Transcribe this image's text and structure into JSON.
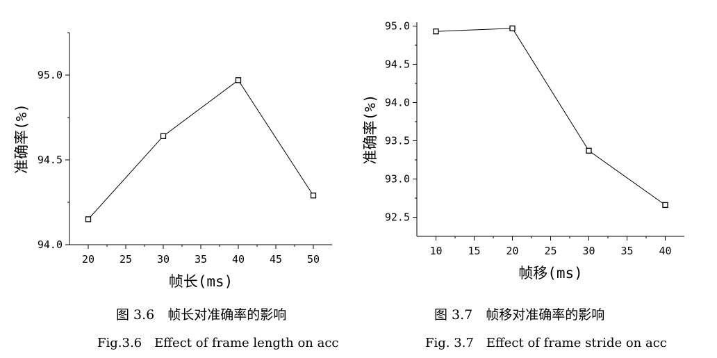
{
  "chart_data": [
    {
      "type": "line",
      "xlabel": "帧长(ms)",
      "ylabel": "准确率(%)",
      "x": [
        20,
        30,
        40,
        50
      ],
      "series": [
        {
          "values": [
            94.15,
            94.64,
            94.97,
            94.29
          ]
        }
      ],
      "xlim": [
        17.5,
        52.5
      ],
      "ylim": [
        94.0,
        95.25
      ],
      "xticks": [
        "20",
        "25",
        "30",
        "35",
        "40",
        "45",
        "50"
      ],
      "yticks": [
        "94.0",
        "94.5",
        "95.0"
      ],
      "marker": "square",
      "grid": false,
      "caption_cn": "图 3.6　帧长对准确率的影响",
      "caption_en": "Fig.3.6　Effect of frame length on acc"
    },
    {
      "type": "line",
      "xlabel": "帧移(ms)",
      "ylabel": "准确率(%)",
      "x": [
        10,
        20,
        30,
        40
      ],
      "series": [
        {
          "values": [
            94.93,
            94.97,
            93.37,
            92.66
          ]
        }
      ],
      "xlim": [
        7.5,
        42.5
      ],
      "ylim": [
        92.25,
        95.05
      ],
      "xticks": [
        "10",
        "15",
        "20",
        "25",
        "30",
        "35",
        "40"
      ],
      "yticks": [
        "92.5",
        "93.0",
        "93.5",
        "94.0",
        "94.5",
        "95.0"
      ],
      "marker": "square",
      "grid": false,
      "caption_cn": "图 3.7　帧移对准确率的影响",
      "caption_en": "Fig. 3.7　Effect of frame stride on acc"
    }
  ]
}
